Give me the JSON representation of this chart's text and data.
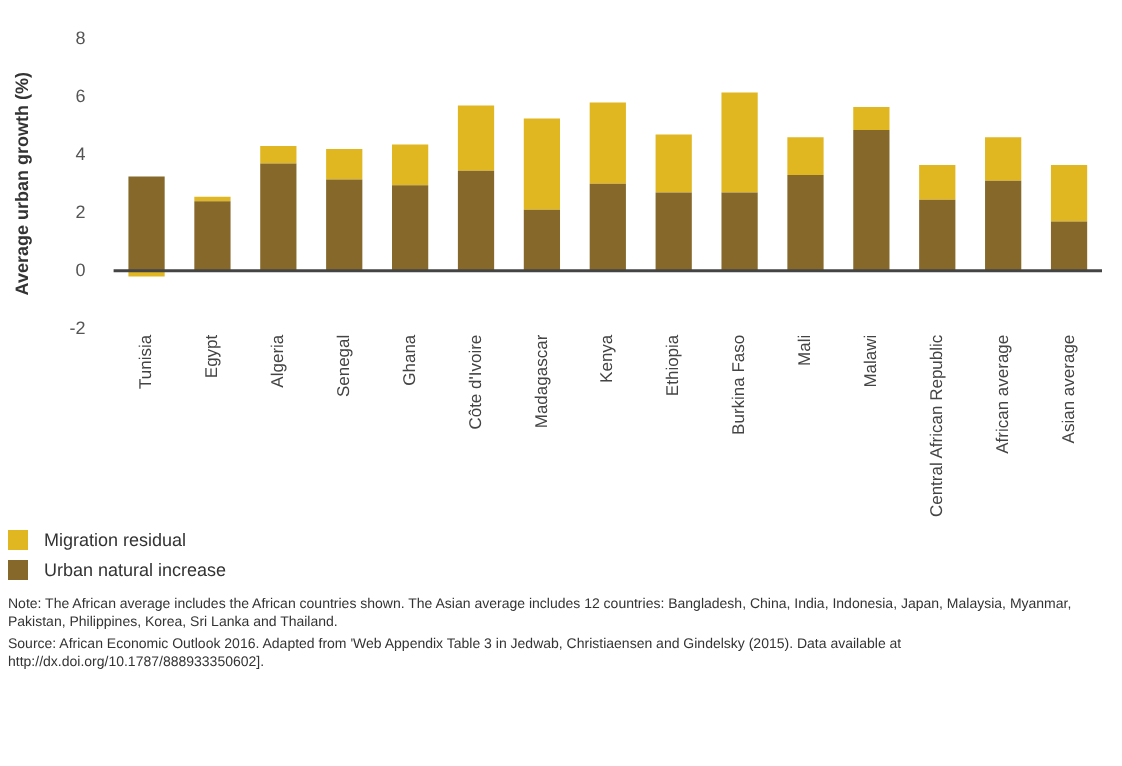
{
  "chart_data": {
    "type": "bar",
    "stacked": true,
    "ylabel": "Average urban growth (%)",
    "categories": [
      "Tunisia",
      "Egypt",
      "Algeria",
      "Senegal",
      "Ghana",
      "Côte d'Ivoire",
      "Madagascar",
      "Kenya",
      "Ethiopia",
      "Burkina Faso",
      "Mali",
      "Malawi",
      "Central African Republic",
      "African average",
      "Asian average"
    ],
    "series": [
      {
        "name": "Urban natural increase",
        "color": "#86692a",
        "values": [
          3.25,
          2.4,
          3.7,
          3.15,
          2.95,
          3.45,
          2.1,
          3.0,
          2.7,
          2.7,
          3.3,
          4.85,
          2.45,
          3.1,
          1.7
        ]
      },
      {
        "name": "Migration residual",
        "color": "#e0b621",
        "values": [
          -0.2,
          0.15,
          0.6,
          1.05,
          1.4,
          2.25,
          3.15,
          2.8,
          2.0,
          3.45,
          1.3,
          0.8,
          1.2,
          1.5,
          1.95
        ]
      }
    ],
    "ylim": [
      -2,
      8
    ],
    "yticks": [
      -2,
      0,
      2,
      4,
      6,
      8
    ],
    "legend": "bottom left",
    "annotations": [
      "Note: The African average includes the African countries shown. The Asian average includes 12 countries: Bangladesh, China, India, Indonesia, Japan, Malaysia, Myanmar, Pakistan, Philippines, Korea, Sri Lanka and Thailand.",
      "Source: African Economic Outlook 2016. Adapted from 'Web Appendix Table 3 in Jedwab, Christiaensen and Gindelsky (2015). Data available at http://dx.doi.org/10.1787/888933350602]."
    ]
  }
}
